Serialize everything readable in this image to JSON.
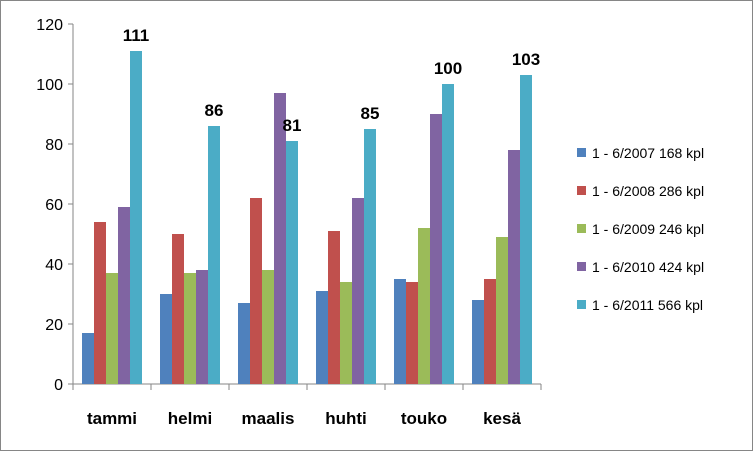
{
  "chart_data": {
    "type": "bar",
    "categories": [
      "tammi",
      "helmi",
      "maalis",
      "huhti",
      "touko",
      "kesä"
    ],
    "series": [
      {
        "name": "1 - 6/2007 168 kpl",
        "color": "#4F81BD",
        "values": [
          17,
          30,
          27,
          31,
          35,
          28
        ]
      },
      {
        "name": "1 - 6/2008 286 kpl",
        "color": "#C0504D",
        "values": [
          54,
          50,
          62,
          51,
          34,
          35
        ]
      },
      {
        "name": "1 - 6/2009 246 kpl",
        "color": "#9BBB59",
        "values": [
          37,
          37,
          38,
          34,
          52,
          49
        ]
      },
      {
        "name": "1 - 6/2010 424 kpl",
        "color": "#8064A2",
        "values": [
          59,
          38,
          97,
          62,
          90,
          78
        ]
      },
      {
        "name": "1 - 6/2011 566 kpl",
        "color": "#4BACC6",
        "values": [
          111,
          86,
          81,
          85,
          100,
          103
        ]
      }
    ],
    "data_labels": {
      "series_index": 4,
      "values": [
        "111",
        "86",
        "81",
        "85",
        "100",
        "103"
      ]
    },
    "y_ticks": [
      "0",
      "20",
      "40",
      "60",
      "80",
      "100",
      "120"
    ],
    "ylim": [
      0,
      120
    ],
    "grid": false,
    "legend": "right"
  }
}
